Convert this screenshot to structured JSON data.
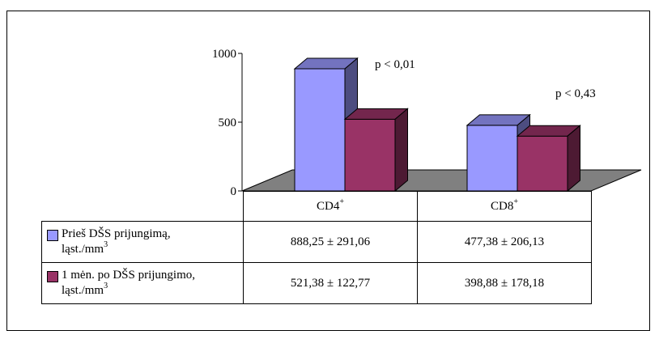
{
  "chart_data": {
    "type": "bar",
    "categories": [
      "CD4",
      "CD8"
    ],
    "category_superscripts": [
      "+",
      "+"
    ],
    "series": [
      {
        "name": "Prieš DŠS prijungimą, ląst./mm",
        "name_line1": "Prieš DŠS prijungimą,",
        "name_line2": "ląst./mm",
        "unit_superscript": "3",
        "color": "#9999ff",
        "values": [
          888.25,
          477.38
        ],
        "display": [
          "888,25 ± 291,06",
          "477,38 ± 206,13"
        ]
      },
      {
        "name": "1 mėn. po DŠS prijungimo, ląst./mm",
        "name_line1": "1 mėn. po DŠS prijungimo,",
        "name_line2": "ląst./mm",
        "unit_superscript": "3",
        "color": "#993366",
        "values": [
          521.38,
          398.88
        ],
        "display": [
          "521,38 ± 122,77",
          "398,88 ± 178,18"
        ]
      }
    ],
    "annotations": [
      "p < 0,01",
      "p < 0,43"
    ],
    "y_ticks": [
      "0",
      "500",
      "1000"
    ],
    "ylim": [
      0,
      1000
    ],
    "floor_color": "#808080",
    "grid": false,
    "legend": "table"
  }
}
